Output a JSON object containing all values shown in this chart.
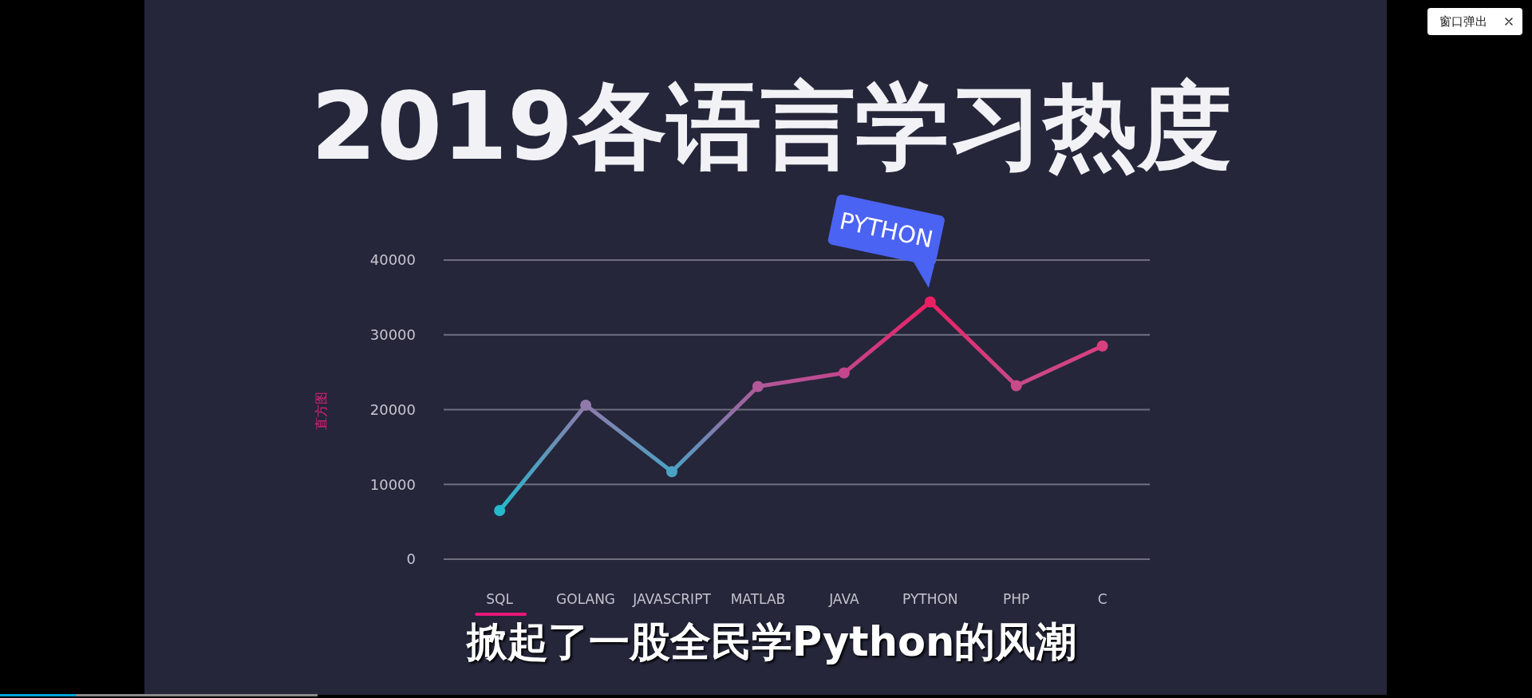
{
  "chart_data": {
    "type": "line",
    "title": "2019各语言学习热度",
    "ylabel": "直方图",
    "categories": [
      "SQL",
      "GOLANG",
      "JAVASCRIPT",
      "MATLAB",
      "JAVA",
      "PYTHON",
      "PHP",
      "C"
    ],
    "values": [
      6500,
      20600,
      11700,
      23100,
      24900,
      34400,
      23200,
      28500
    ],
    "colors": [
      "#25b9cc",
      "#8f7aab",
      "#4aa3c4",
      "#b05898",
      "#c4468c",
      "#ec1f63",
      "#c84a88",
      "#d83f7e"
    ],
    "ylim": [
      0,
      40000
    ],
    "yticks": [
      0,
      10000,
      20000,
      30000,
      40000
    ],
    "grid": "y",
    "marker": "circle",
    "line_style": "solid",
    "annotations": [
      {
        "text": "PYTHON",
        "x": "PYTHON",
        "y": 34400
      },
      "掀起了一股全民学Python的风潮",
      "窗口弹出"
    ]
  }
}
